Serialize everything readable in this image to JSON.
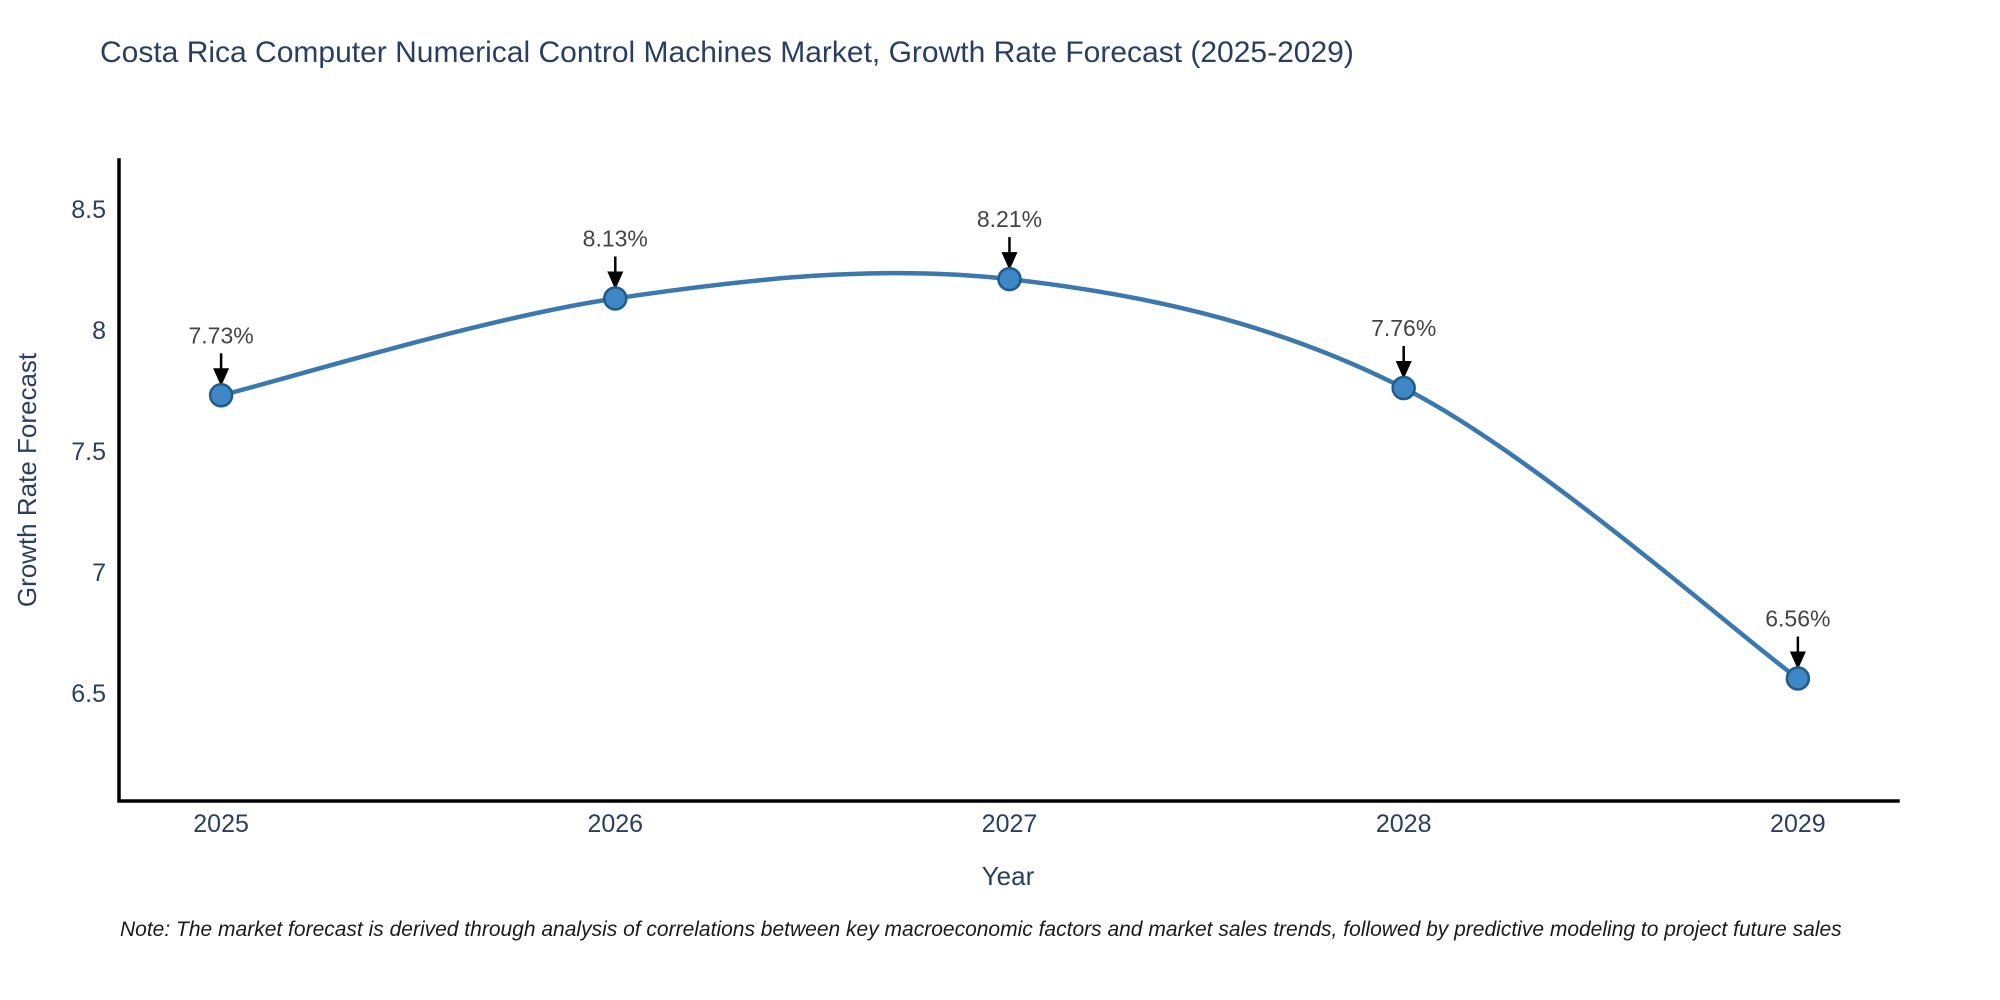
{
  "page": {
    "title": "Costa Rica Computer Numerical Control Machines Market, Growth Rate Forecast (2025-2029)",
    "ylabel": "Growth Rate Forecast",
    "xlabel": "Year",
    "note": "Note: The market forecast is derived through analysis of correlations between key macroeconomic factors and market sales trends, followed by predictive modeling to project future sales"
  },
  "colors": {
    "background": "#ffffff",
    "line": "#3b78ae",
    "marker_fill": "#3f86c5",
    "marker_edge": "#1f5c8a",
    "axis_line": "#000000",
    "arrow": "#000000",
    "title_text": "#2a3f5f",
    "axis_text": "#2a3f5f",
    "annotation_text": "#444444"
  },
  "chart_data": {
    "type": "line",
    "title": "Costa Rica Computer Numerical Control Machines Market, Growth Rate Forecast (2025-2029)",
    "xlabel": "Year",
    "ylabel": "Growth Rate Forecast",
    "x": [
      2025,
      2026,
      2027,
      2028,
      2029
    ],
    "values": [
      7.73,
      8.13,
      8.21,
      7.76,
      6.56
    ],
    "labels": [
      "7.73%",
      "8.13%",
      "8.21%",
      "7.76%",
      "6.56%"
    ],
    "xticks": [
      "2025",
      "2026",
      "2027",
      "2028",
      "2029"
    ],
    "yticks": [
      8.5,
      8.0,
      7.5,
      7.0,
      6.5
    ],
    "ytick_labels": [
      "8.5",
      "8",
      "7.5",
      "7",
      "6.5"
    ],
    "xlim": [
      2024.741,
      2029.254
    ],
    "ylim": [
      6.054,
      8.702
    ],
    "line_shape": "spline",
    "grid": false,
    "legend": "none",
    "annotations_have_arrows": true
  }
}
